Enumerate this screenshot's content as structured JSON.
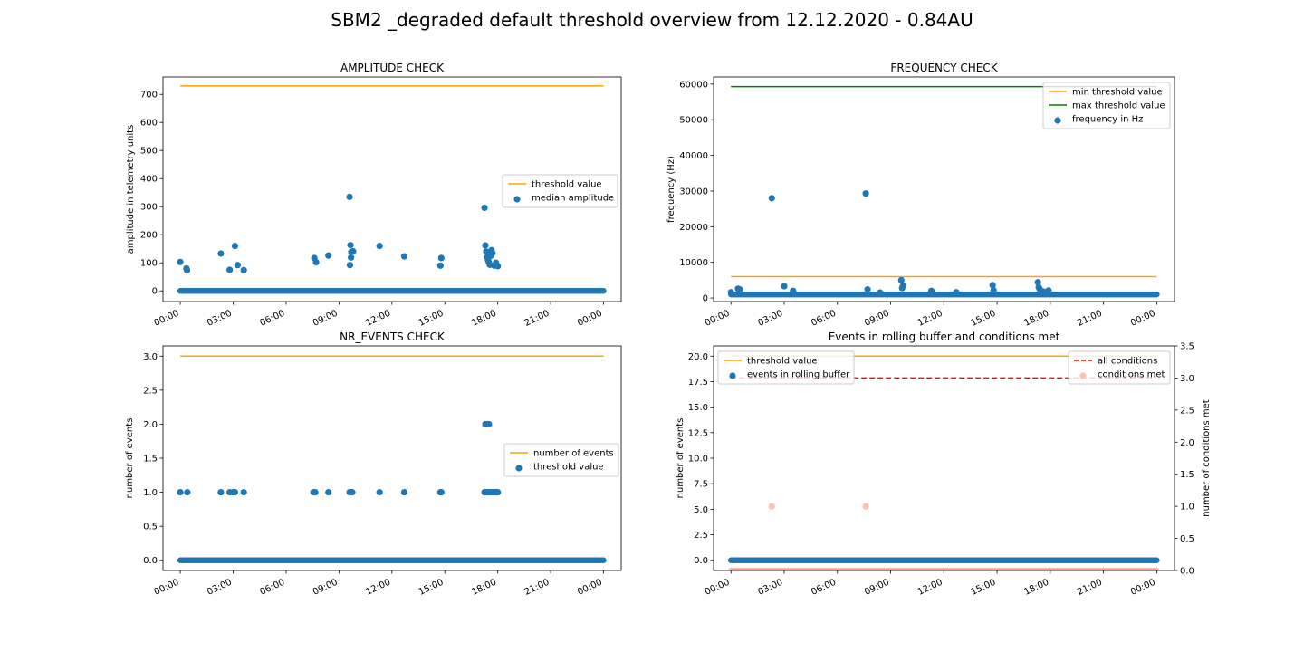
{
  "figure": {
    "title": "SBM2 _degraded default threshold overview from 12.12.2020 - 0.84AU",
    "colors": {
      "orange": "#ffa500",
      "green": "#008000",
      "blue": "#1f77b4",
      "red": "#ff0000",
      "salmon": "#ffc0b8"
    }
  },
  "chart_data": [
    {
      "id": "amplitude",
      "type": "scatter",
      "title": "AMPLITUDE CHECK",
      "xlabel": "",
      "ylabel": "amplitude in telemetry units",
      "x_unit": "hours",
      "xlim": [
        -0.98,
        25.0
      ],
      "ylim": [
        -38,
        762
      ],
      "x_ticks": [
        0,
        3,
        6,
        9,
        12,
        15,
        18,
        21,
        24
      ],
      "x_tick_labels": [
        "00:00",
        "03:00",
        "06:00",
        "09:00",
        "12:00",
        "15:00",
        "18:00",
        "21:00",
        "00:00"
      ],
      "y_ticks": [
        0,
        100,
        200,
        300,
        400,
        500,
        600,
        700
      ],
      "y_tick_labels": [
        "0",
        "100",
        "200",
        "300",
        "400",
        "500",
        "600",
        "700"
      ],
      "lines": [
        {
          "name": "threshold value",
          "color": "#ffa500",
          "x": [
            0,
            24
          ],
          "y": [
            730,
            730
          ],
          "dash": false
        }
      ],
      "series": [
        {
          "name": "median amplitude",
          "color": "#1f77b4",
          "baseline": {
            "x_start": 0,
            "x_end": 24,
            "y": 0
          },
          "x": [
            0.0,
            0.35,
            0.38,
            2.3,
            2.8,
            3.1,
            3.25,
            3.6,
            7.6,
            7.7,
            8.4,
            9.6,
            9.65,
            9.7,
            9.62,
            9.68,
            9.8,
            11.3,
            12.7,
            14.75,
            14.8,
            17.25,
            17.3,
            17.35,
            17.4,
            17.45,
            17.5,
            17.55,
            17.6,
            17.65,
            17.7,
            17.8,
            17.9,
            18.0
          ],
          "y": [
            103,
            80,
            74,
            133,
            75,
            160,
            92,
            74,
            117,
            102,
            126,
            335,
            163,
            139,
            92,
            119,
            141,
            160,
            123,
            90,
            117,
            296,
            162,
            140,
            120,
            110,
            101,
            93,
            125,
            145,
            135,
            90,
            100,
            88
          ]
        }
      ],
      "legend": {
        "position": "center-right",
        "entries": [
          "threshold value",
          "median amplitude"
        ]
      }
    },
    {
      "id": "frequency",
      "type": "scatter",
      "title": "FREQUENCY CHECK",
      "xlabel": "",
      "ylabel": "frequency (Hz)",
      "x_unit": "hours",
      "xlim": [
        -0.98,
        25.0
      ],
      "ylim": [
        -1000,
        62000
      ],
      "x_ticks": [
        0,
        3,
        6,
        9,
        12,
        15,
        18,
        21,
        24
      ],
      "x_tick_labels": [
        "00:00",
        "03:00",
        "06:00",
        "09:00",
        "12:00",
        "15:00",
        "18:00",
        "21:00",
        "00:00"
      ],
      "y_ticks": [
        0,
        10000,
        20000,
        30000,
        40000,
        50000,
        60000
      ],
      "y_tick_labels": [
        "0",
        "10000",
        "20000",
        "30000",
        "40000",
        "50000",
        "60000"
      ],
      "lines": [
        {
          "name": "min threshold value",
          "color": "#ffa500",
          "x": [
            0,
            24
          ],
          "y": [
            6000,
            6000
          ],
          "dash": false
        },
        {
          "name": "max threshold value",
          "color": "#008000",
          "x": [
            0,
            24
          ],
          "y": [
            59300,
            59300
          ],
          "dash": false
        }
      ],
      "series": [
        {
          "name": "frequency in Hz",
          "color": "#1f77b4",
          "baseline": {
            "x_start": 0,
            "x_end": 24,
            "y": 1000
          },
          "x": [
            0.0,
            0.4,
            0.5,
            2.3,
            3.0,
            3.5,
            7.6,
            7.7,
            8.4,
            9.6,
            9.7,
            9.65,
            11.3,
            12.7,
            14.75,
            14.8,
            17.3,
            17.35,
            17.4,
            17.6,
            17.9
          ],
          "y": [
            1600,
            2600,
            2400,
            28000,
            3300,
            2000,
            29300,
            2400,
            1500,
            5000,
            3500,
            2800,
            2000,
            1600,
            3600,
            2200,
            4400,
            3000,
            2500,
            1800,
            2100
          ]
        }
      ],
      "legend": {
        "position": "top-right",
        "entries": [
          "min threshold value",
          "max threshold value",
          "frequency in Hz"
        ]
      }
    },
    {
      "id": "nr_events",
      "type": "scatter",
      "title": "NR_EVENTS CHECK",
      "xlabel": "",
      "ylabel": "number of events",
      "x_unit": "hours",
      "xlim": [
        -0.98,
        25.0
      ],
      "ylim": [
        -0.15,
        3.15
      ],
      "x_ticks": [
        0,
        3,
        6,
        9,
        12,
        15,
        18,
        21,
        24
      ],
      "x_tick_labels": [
        "00:00",
        "03:00",
        "06:00",
        "09:00",
        "12:00",
        "15:00",
        "18:00",
        "21:00",
        "00:00"
      ],
      "y_ticks": [
        0,
        0.5,
        1,
        1.5,
        2,
        2.5,
        3
      ],
      "y_tick_labels": [
        "0.0",
        "0.5",
        "1.0",
        "1.5",
        "2.0",
        "2.5",
        "3.0"
      ],
      "lines": [
        {
          "name": "number of events",
          "color": "#ffa500",
          "x": [
            0,
            24
          ],
          "y": [
            3,
            3
          ],
          "dash": false
        }
      ],
      "series": [
        {
          "name": "threshold value",
          "color": "#1f77b4",
          "baseline": {
            "x_start": 0,
            "x_end": 24,
            "y": 0
          },
          "x": [
            0.0,
            0.4,
            2.3,
            2.8,
            3.0,
            3.1,
            3.6,
            7.55,
            7.65,
            8.4,
            9.6,
            9.7,
            9.75,
            11.3,
            12.7,
            14.75,
            14.8,
            17.25,
            17.35,
            17.45,
            17.55,
            17.65,
            17.75,
            17.85,
            17.95,
            18.0,
            17.3,
            17.4,
            17.45,
            17.5
          ],
          "y": [
            1,
            1,
            1,
            1,
            1,
            1,
            1,
            1,
            1,
            1,
            1,
            1,
            1,
            1,
            1,
            1,
            1,
            1,
            1,
            1,
            1,
            1,
            1,
            1,
            1,
            1,
            2,
            2,
            2,
            2
          ]
        }
      ],
      "legend": {
        "position": "center-right",
        "entries": [
          "number of events",
          "threshold value"
        ]
      }
    },
    {
      "id": "rolling",
      "type": "scatter",
      "title": "Events in rolling buffer and conditions met",
      "xlabel": "",
      "ylabel": "number of events",
      "ylabel_right": "number of conditions met",
      "x_unit": "hours",
      "xlim": [
        -0.98,
        25.0
      ],
      "ylim": [
        -1.0,
        21.0
      ],
      "ylim_right": [
        0,
        3.5
      ],
      "x_ticks": [
        0,
        3,
        6,
        9,
        12,
        15,
        18,
        21,
        24
      ],
      "x_tick_labels": [
        "00:00",
        "03:00",
        "06:00",
        "09:00",
        "12:00",
        "15:00",
        "18:00",
        "21:00",
        "00:00"
      ],
      "y_ticks": [
        0,
        2.5,
        5,
        7.5,
        10,
        12.5,
        15,
        17.5,
        20
      ],
      "y_tick_labels": [
        "0.0",
        "2.5",
        "5.0",
        "7.5",
        "10.0",
        "12.5",
        "15.0",
        "17.5",
        "20.0"
      ],
      "y_ticks_right": [
        0,
        0.5,
        1,
        1.5,
        2,
        2.5,
        3,
        3.5
      ],
      "y_tick_labels_right": [
        "0.0",
        "0.5",
        "1.0",
        "1.5",
        "2.0",
        "2.5",
        "3.0",
        "3.5"
      ],
      "lines": [
        {
          "name": "threshold value",
          "color": "#ffa500",
          "axis": "left",
          "x": [
            0,
            24
          ],
          "y": [
            20,
            20
          ],
          "dash": false
        },
        {
          "name": "all conditions",
          "color": "#ff0000",
          "axis": "right",
          "x": [
            0,
            24
          ],
          "y": [
            3,
            3
          ],
          "dash": true
        }
      ],
      "series": [
        {
          "name": "events in rolling buffer",
          "color": "#1f77b4",
          "axis": "left",
          "baseline": {
            "x_start": 0,
            "x_end": 24,
            "y": 0
          },
          "x": [],
          "y": []
        },
        {
          "name": "conditions met",
          "color": "#ffc0b8",
          "axis": "right",
          "baseline": {
            "x_start": 0,
            "x_end": 24,
            "y": 0
          },
          "x": [
            2.3,
            7.6
          ],
          "y": [
            1,
            1
          ]
        }
      ],
      "legend_left": {
        "position": "top-left",
        "entries": [
          "threshold value",
          "events in rolling buffer"
        ]
      },
      "legend_right": {
        "position": "top-right",
        "entries": [
          "all conditions",
          "conditions met"
        ]
      }
    }
  ]
}
